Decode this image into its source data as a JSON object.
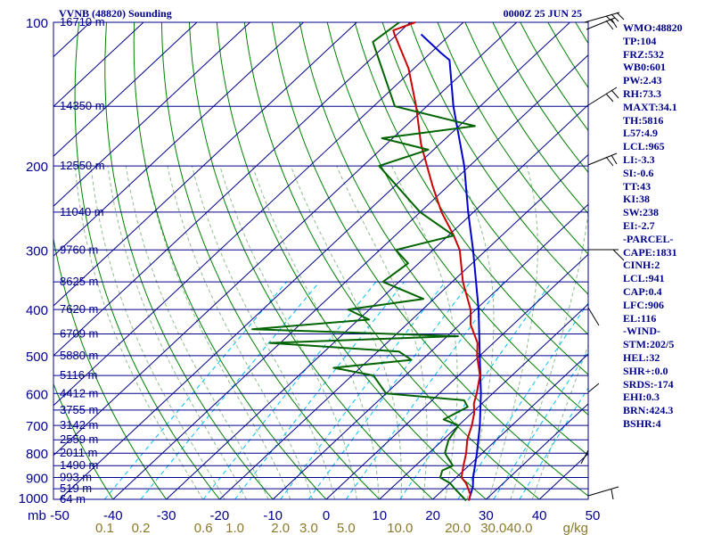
{
  "header": {
    "left": "VVNB (48820) Sounding",
    "right": "0000Z 25 JUN 25"
  },
  "stats": [
    "WMO:48820",
    "TP:104",
    "FRZ:532",
    "WB0:601",
    "PW:2.43",
    "RH:73.3",
    "MAXT:34.1",
    "TH:5816",
    "L57:4.9",
    "LCL:965",
    "LI:-3.3",
    "SI:-0.6",
    "TT:43",
    "KI:38",
    "SW:238",
    "EI:-2.7",
    "-PARCEL-",
    "CAPE:1831",
    "CINH:2",
    "LCL:941",
    "CAP:0.4",
    "LFC:906",
    "EL:116",
    "-WIND-",
    "STM:202/5",
    "HEL:32",
    "SHR+:0.0",
    "SRDS:-174",
    "EHI:0.3",
    "BRN:424.3",
    "BSHR:4"
  ],
  "colors": {
    "frame": "#00008b",
    "isotherm": "#00008b",
    "dry_adiabat": "#008000",
    "moist_adiabat": "#8fbc8f",
    "mixing_ratio": "#00bfff",
    "temperature": "#cc0000",
    "dewpoint": "#006400",
    "parcel": "#0000cd",
    "mixing_label": "#8b7a2b"
  },
  "chart_data": {
    "type": "skew-t",
    "pressure_ticks": [
      100,
      200,
      300,
      400,
      500,
      600,
      700,
      800,
      900,
      1000
    ],
    "pressure_unit": "mb",
    "temperature_ticks": [
      -50,
      -40,
      -30,
      -20,
      -10,
      0,
      10,
      20,
      30,
      40,
      50
    ],
    "mixing_ratio_ticks": [
      "0.1",
      "0.2",
      "0.6",
      "1.0",
      "2.0",
      "3.0",
      "5.0",
      "10.0",
      "20.0",
      "30.0",
      "40.0"
    ],
    "mixing_ratio_unit": "g/kg",
    "height_levels": [
      {
        "p": 100,
        "label": "16710 m"
      },
      {
        "p": 150,
        "label": "14350 m"
      },
      {
        "p": 200,
        "label": "12550 m"
      },
      {
        "p": 250,
        "label": "11040 m"
      },
      {
        "p": 300,
        "label": "9760 m"
      },
      {
        "p": 350,
        "label": "8625 m"
      },
      {
        "p": 400,
        "label": "7620 m"
      },
      {
        "p": 450,
        "label": "6709 m"
      },
      {
        "p": 500,
        "label": "5880 m"
      },
      {
        "p": 550,
        "label": "5116 m"
      },
      {
        "p": 600,
        "label": "4412 m"
      },
      {
        "p": 650,
        "label": "3755 m"
      },
      {
        "p": 700,
        "label": "3142 m"
      },
      {
        "p": 750,
        "label": "2559 m"
      },
      {
        "p": 800,
        "label": "2011 m"
      },
      {
        "p": 850,
        "label": "1490 m"
      },
      {
        "p": 900,
        "label": "993 m"
      },
      {
        "p": 950,
        "label": "519 m"
      },
      {
        "p": 1000,
        "label": "64 m"
      }
    ],
    "temperature": [
      {
        "p": 1006,
        "t": 27.0
      },
      {
        "p": 975,
        "t": 26.0
      },
      {
        "p": 950,
        "t": 24.5
      },
      {
        "p": 925,
        "t": 23.0
      },
      {
        "p": 900,
        "t": 21.0
      },
      {
        "p": 850,
        "t": 19.0
      },
      {
        "p": 800,
        "t": 17.0
      },
      {
        "p": 750,
        "t": 14.5
      },
      {
        "p": 700,
        "t": 12.5
      },
      {
        "p": 660,
        "t": 10.5
      },
      {
        "p": 630,
        "t": 8.5
      },
      {
        "p": 600,
        "t": 7.0
      },
      {
        "p": 550,
        "t": 4.0
      },
      {
        "p": 500,
        "t": -0.5
      },
      {
        "p": 470,
        "t": -3.0
      },
      {
        "p": 430,
        "t": -8.0
      },
      {
        "p": 400,
        "t": -11.0
      },
      {
        "p": 350,
        "t": -18.0
      },
      {
        "p": 300,
        "t": -25.0
      },
      {
        "p": 280,
        "t": -29.0
      },
      {
        "p": 250,
        "t": -36.0
      },
      {
        "p": 220,
        "t": -43.0
      },
      {
        "p": 200,
        "t": -48.0
      },
      {
        "p": 180,
        "t": -53.5
      },
      {
        "p": 150,
        "t": -62.0
      },
      {
        "p": 125,
        "t": -71.0
      },
      {
        "p": 106,
        "t": -80.5
      },
      {
        "p": 104,
        "t": -81.5
      },
      {
        "p": 100,
        "t": -79.0
      }
    ],
    "dewpoint": [
      {
        "p": 1006,
        "t": 26.5
      },
      {
        "p": 950,
        "t": 22.0
      },
      {
        "p": 925,
        "t": 20.0
      },
      {
        "p": 900,
        "t": 17.0
      },
      {
        "p": 870,
        "t": 16.0
      },
      {
        "p": 850,
        "t": 17.0
      },
      {
        "p": 800,
        "t": 13.0
      },
      {
        "p": 750,
        "t": 11.0
      },
      {
        "p": 700,
        "t": 10.0
      },
      {
        "p": 680,
        "t": 6.0
      },
      {
        "p": 660,
        "t": 7.0
      },
      {
        "p": 640,
        "t": 8.0
      },
      {
        "p": 620,
        "t": 6.0
      },
      {
        "p": 600,
        "t": -10.0
      },
      {
        "p": 550,
        "t": -16.0
      },
      {
        "p": 530,
        "t": -25.0
      },
      {
        "p": 510,
        "t": -12.0
      },
      {
        "p": 490,
        "t": -16.0
      },
      {
        "p": 470,
        "t": -42.0
      },
      {
        "p": 455,
        "t": -8.0
      },
      {
        "p": 440,
        "t": -48.0
      },
      {
        "p": 420,
        "t": -28.0
      },
      {
        "p": 400,
        "t": -34.0
      },
      {
        "p": 380,
        "t": -22.0
      },
      {
        "p": 350,
        "t": -33.0
      },
      {
        "p": 320,
        "t": -32.0
      },
      {
        "p": 300,
        "t": -37.0
      },
      {
        "p": 280,
        "t": -29.0
      },
      {
        "p": 250,
        "t": -40.0
      },
      {
        "p": 200,
        "t": -57.0
      },
      {
        "p": 185,
        "t": -51.0
      },
      {
        "p": 175,
        "t": -62.0
      },
      {
        "p": 165,
        "t": -47.0
      },
      {
        "p": 150,
        "t": -66.0
      },
      {
        "p": 125,
        "t": -76.0
      },
      {
        "p": 110,
        "t": -83.0
      },
      {
        "p": 100,
        "t": -82.0
      }
    ],
    "parcel": [
      {
        "p": 1006,
        "t": 27.0
      },
      {
        "p": 941,
        "t": 25.0
      },
      {
        "p": 900,
        "t": 23.2
      },
      {
        "p": 800,
        "t": 19.0
      },
      {
        "p": 700,
        "t": 14.0
      },
      {
        "p": 600,
        "t": 7.8
      },
      {
        "p": 500,
        "t": 0.0
      },
      {
        "p": 400,
        "t": -9.5
      },
      {
        "p": 300,
        "t": -22.5
      },
      {
        "p": 250,
        "t": -31.0
      },
      {
        "p": 200,
        "t": -41.0
      },
      {
        "p": 150,
        "t": -55.0
      },
      {
        "p": 120,
        "t": -65.0
      },
      {
        "p": 116,
        "t": -68.0
      },
      {
        "p": 106,
        "t": -75.5
      }
    ]
  }
}
